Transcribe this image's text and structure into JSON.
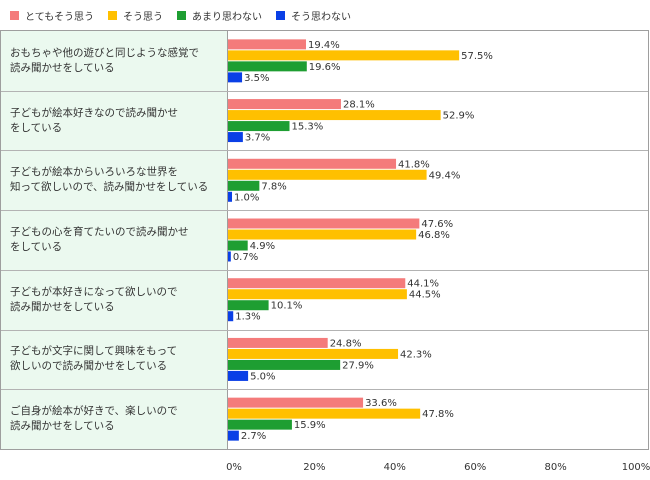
{
  "chart_data": {
    "type": "bar",
    "orientation": "horizontal",
    "xlim": [
      0,
      100
    ],
    "x_ticks": [
      "0%",
      "20%",
      "40%",
      "60%",
      "80%",
      "100%"
    ],
    "legend_position": "top-left",
    "categories": [
      "おもちゃや他の遊びと同じような感覚で\n読み聞かせをしている",
      "子どもが絵本好きなので読み聞かせ\nをしている",
      "子どもが絵本からいろいろな世界を\n知って欲しいので、読み聞かせをしている",
      "子どもの心を育てたいので読み聞かせ\nをしている",
      "子どもが本好きになって欲しいので\n読み聞かせをしている",
      "子どもが文字に関して興味をもって\n欲しいので読み聞かせをしている",
      "ご自身が絵本が好きで、楽しいので\n読み聞かせをしている"
    ],
    "series": [
      {
        "name": "とてもそう思う",
        "color": "#f47b7b",
        "values": [
          19.4,
          28.1,
          41.8,
          47.6,
          44.1,
          24.8,
          33.6
        ]
      },
      {
        "name": "そう思う",
        "color": "#ffc000",
        "values": [
          57.5,
          52.9,
          49.4,
          46.8,
          44.5,
          42.3,
          47.8
        ]
      },
      {
        "name": "あまり思わない",
        "color": "#1e9e32",
        "values": [
          19.6,
          15.3,
          7.8,
          4.9,
          10.1,
          27.9,
          15.9
        ]
      },
      {
        "name": "そう思わない",
        "color": "#0a3fe6",
        "values": [
          3.5,
          3.7,
          1.0,
          0.7,
          1.3,
          5.0,
          2.7
        ]
      }
    ],
    "value_suffix": "%"
  }
}
